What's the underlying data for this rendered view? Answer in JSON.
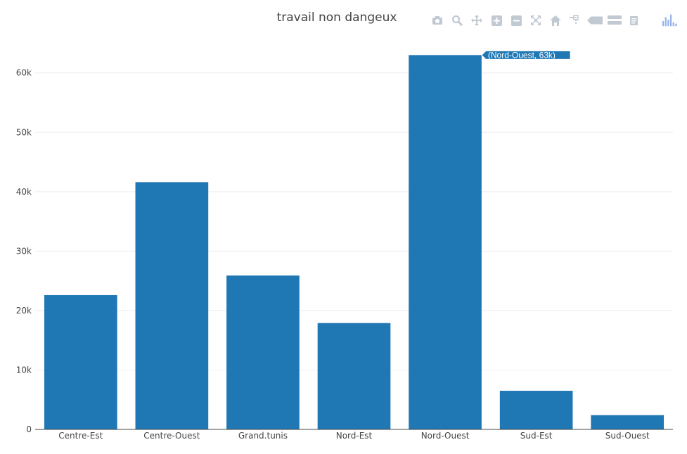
{
  "chart_data": {
    "type": "bar",
    "title": "travail non dangeux",
    "xlabel": "",
    "ylabel": "",
    "categories": [
      "Centre-Est",
      "Centre-Ouest",
      "Grand.tunis",
      "Nord-Est",
      "Nord-Ouest",
      "Sud-Est",
      "Sud-Ouest"
    ],
    "values": [
      22600,
      41600,
      25900,
      17900,
      63000,
      6500,
      2400
    ],
    "ylim": [
      0,
      66000
    ],
    "yticks": [
      0,
      10000,
      20000,
      30000,
      40000,
      50000,
      60000
    ],
    "ytick_labels": [
      "0",
      "10k",
      "20k",
      "30k",
      "40k",
      "50k",
      "60k"
    ],
    "grid": true,
    "bar_color": "#1f77b4",
    "hover_label": "(Nord-Ouest, 63k)",
    "hover_index": 4
  },
  "toolbar": {
    "icons": [
      "camera-icon",
      "zoom-icon",
      "pan-icon",
      "zoom-in-icon",
      "zoom-out-icon",
      "autoscale-icon",
      "reset-axes-icon",
      "spike-lines-icon",
      "hover-closest-icon",
      "hover-compare-icon",
      "edit-chart-icon",
      "plotly-logo-icon"
    ]
  }
}
